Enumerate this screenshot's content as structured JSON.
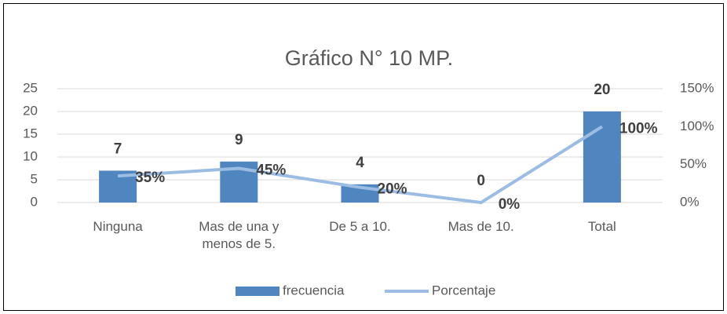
{
  "chart_data": {
    "type": "bar_line",
    "title": "Gráfico N° 10 MP.",
    "categories": [
      "Ninguna",
      "Mas de una y menos de 5.",
      "De 5 a 10.",
      "Mas de 10.",
      "Total"
    ],
    "series": [
      {
        "name": "frecuencia",
        "type": "bar",
        "color": "#4f86c0",
        "values": [
          7,
          9,
          4,
          0,
          20
        ]
      },
      {
        "name": "Porcentaje",
        "type": "line",
        "axis": "y2",
        "color": "#9cbde3",
        "values": [
          35,
          45,
          20,
          0,
          100
        ],
        "value_labels": [
          "35%",
          "45%",
          "20%",
          "0%",
          "100%"
        ]
      }
    ],
    "ylim": [
      0,
      25
    ],
    "yticks": [
      0,
      5,
      10,
      15,
      20,
      25
    ],
    "y2lim": [
      0,
      150
    ],
    "y2ticks": [
      {
        "value": 0,
        "label": "0%"
      },
      {
        "value": 50,
        "label": "50%"
      },
      {
        "value": 100,
        "label": "100%"
      },
      {
        "value": 150,
        "label": "150%"
      }
    ],
    "grid": true,
    "legend": "bottom"
  }
}
